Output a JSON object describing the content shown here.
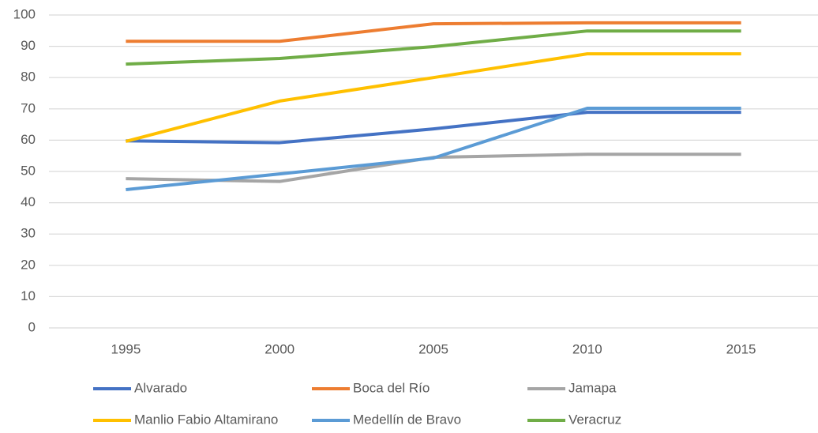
{
  "chart_data": {
    "type": "line",
    "categories": [
      "1995",
      "2000",
      "2005",
      "2010",
      "2015"
    ],
    "series": [
      {
        "name": "Alvarado",
        "color": "#4472c4",
        "values": [
          59.8,
          59.2,
          63.6,
          68.9,
          68.9
        ]
      },
      {
        "name": "Boca del Río",
        "color": "#ed7d31",
        "values": [
          91.6,
          91.6,
          97.2,
          97.5,
          97.5
        ]
      },
      {
        "name": "Jamapa",
        "color": "#a5a5a5",
        "values": [
          47.7,
          46.8,
          54.5,
          55.5,
          55.5
        ]
      },
      {
        "name": "Manlio Fabio Altamirano",
        "color": "#ffc000",
        "values": [
          59.6,
          72.5,
          80.0,
          87.6,
          87.6
        ]
      },
      {
        "name": "Medellín de Bravo",
        "color": "#5b9bd5",
        "values": [
          44.2,
          49.2,
          54.3,
          70.2,
          70.2
        ]
      },
      {
        "name": "Veracruz",
        "color": "#70ad47",
        "values": [
          84.3,
          86.1,
          89.9,
          94.9,
          94.9
        ]
      }
    ],
    "ylim": [
      0,
      100
    ],
    "yticks": [
      0,
      10,
      20,
      30,
      40,
      50,
      60,
      70,
      80,
      90,
      100
    ],
    "grid": true,
    "legend": "bottom"
  }
}
